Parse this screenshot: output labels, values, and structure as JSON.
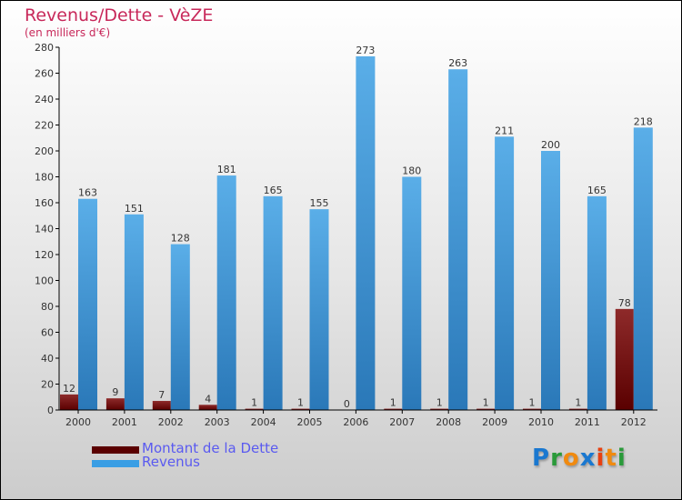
{
  "chart_data": {
    "type": "bar",
    "title": "Revenus/Dette - VèZE",
    "subtitle": "(en milliers d'€)",
    "categories": [
      "2000",
      "2001",
      "2002",
      "2003",
      "2004",
      "2005",
      "2006",
      "2007",
      "2008",
      "2009",
      "2010",
      "2011",
      "2012"
    ],
    "series": [
      {
        "name": "Montant de la Dette",
        "color": "#6b0a0a",
        "values": [
          12,
          9,
          7,
          4,
          1,
          1,
          0,
          1,
          1,
          1,
          1,
          1,
          78
        ]
      },
      {
        "name": "Revenus",
        "color": "#3a9ee4",
        "values": [
          163,
          151,
          128,
          181,
          165,
          155,
          273,
          180,
          263,
          211,
          200,
          165,
          218
        ]
      }
    ],
    "ylim": [
      0,
      280
    ],
    "yticks": [
      0,
      20,
      40,
      60,
      80,
      100,
      120,
      140,
      160,
      180,
      200,
      220,
      240,
      260,
      280
    ],
    "legend_position": "bottom-left"
  },
  "logo": {
    "text": "Proxiti"
  }
}
